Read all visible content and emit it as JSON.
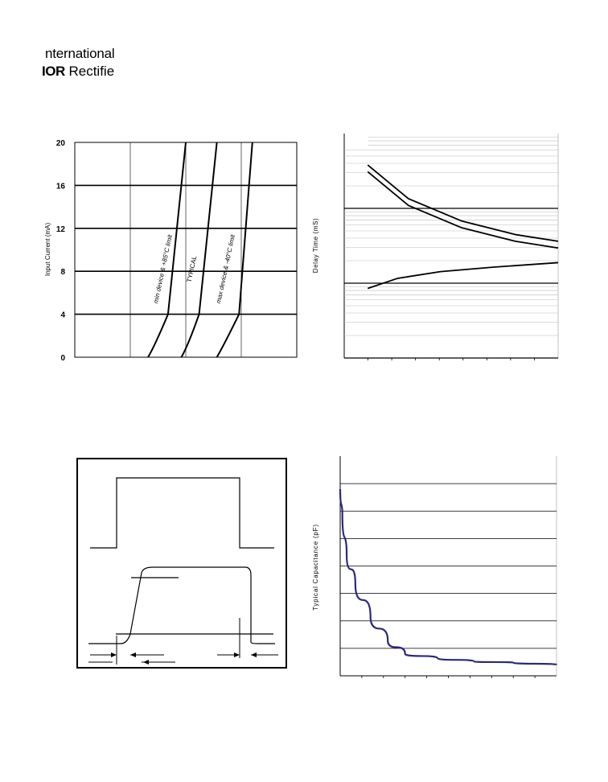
{
  "header": {
    "logo_line1": "nternational",
    "logo_ior": "IOR",
    "logo_line2": "Rectifie"
  },
  "chart_data": [
    {
      "type": "line",
      "ylabel": "Input Current (mA)",
      "yticks": [
        "0",
        "4",
        "8",
        "12",
        "16",
        "20"
      ],
      "ylim": [
        0,
        20
      ],
      "grid": true,
      "annotations": [
        "min device & +85°C limit",
        "TYPICAL",
        "max device & -40°C limit"
      ],
      "series": [
        {
          "name": "min device & +85°C limit",
          "points": [
            [
              0.33,
              0
            ],
            [
              0.36,
              1.2
            ],
            [
              0.42,
              4
            ],
            [
              0.5,
              20
            ]
          ]
        },
        {
          "name": "TYPICAL",
          "points": [
            [
              0.48,
              0
            ],
            [
              0.51,
              1.2
            ],
            [
              0.56,
              4
            ],
            [
              0.64,
              20
            ]
          ]
        },
        {
          "name": "max device & -40°C limit",
          "points": [
            [
              0.64,
              0
            ],
            [
              0.67,
              1.2
            ],
            [
              0.74,
              4
            ],
            [
              0.8,
              20
            ]
          ]
        }
      ]
    },
    {
      "type": "line",
      "ylabel": "Delay Time (mS)",
      "yscale": "log",
      "grid": true,
      "series": [
        {
          "points": [
            [
              0.11,
              0.86
            ],
            [
              0.3,
              0.71
            ],
            [
              0.55,
              0.61
            ],
            [
              0.8,
              0.55
            ],
            [
              1.0,
              0.52
            ]
          ]
        },
        {
          "points": [
            [
              0.11,
              0.83
            ],
            [
              0.3,
              0.68
            ],
            [
              0.55,
              0.58
            ],
            [
              0.8,
              0.52
            ],
            [
              1.0,
              0.49
            ]
          ]
        },
        {
          "points": [
            [
              0.11,
              0.31
            ],
            [
              0.25,
              0.355
            ],
            [
              0.45,
              0.385
            ],
            [
              0.7,
              0.405
            ],
            [
              1.0,
              0.425
            ]
          ]
        }
      ]
    },
    {
      "type": "line",
      "ylabel": "Typical Capacitance (pF)",
      "grid": true,
      "series": [
        {
          "points": [
            [
              0,
              0.85
            ],
            [
              0.01,
              0.74
            ],
            [
              0.03,
              0.55
            ],
            [
              0.07,
              0.42
            ],
            [
              0.14,
              0.27
            ],
            [
              0.22,
              0.16
            ],
            [
              0.3,
              0.1
            ],
            [
              0.45,
              0.08
            ],
            [
              0.62,
              0.065
            ],
            [
              0.8,
              0.06
            ],
            [
              1.0,
              0.05
            ]
          ]
        }
      ]
    }
  ]
}
